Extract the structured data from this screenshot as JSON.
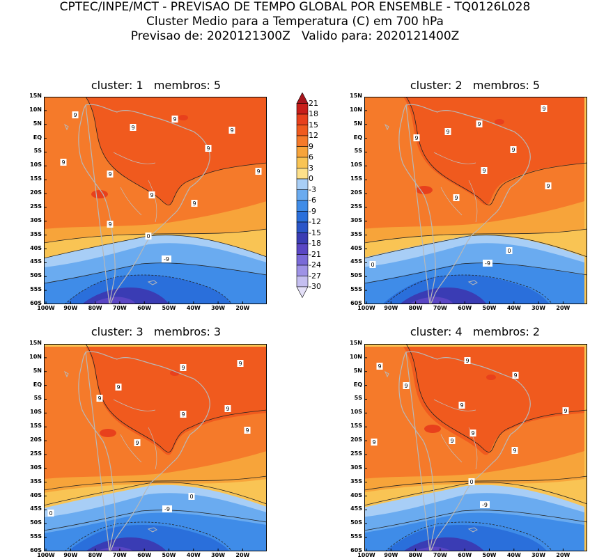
{
  "header": {
    "line1": "CPTEC/INPE/MCT - PREVISAO DE TEMPO GLOBAL POR ENSEMBLE - TQ0126L028",
    "line2": "Cluster Medio para a Temperatura (C) em 700 hPa",
    "line3": "Previsao de: 2020121300Z   Valido para: 2020121400Z"
  },
  "panels": [
    {
      "title": "cluster: 1   membros: 5"
    },
    {
      "title": "cluster: 2   membros: 5"
    },
    {
      "title": "cluster: 3   membros: 3"
    },
    {
      "title": "cluster: 4   membros: 2"
    }
  ],
  "lat_labels": [
    "15N",
    "10N",
    "5N",
    "EQ",
    "5S",
    "10S",
    "15S",
    "20S",
    "25S",
    "30S",
    "35S",
    "40S",
    "45S",
    "50S",
    "55S",
    "60S"
  ],
  "lon_labels": [
    "100W",
    "90W",
    "80W",
    "70W",
    "60W",
    "50W",
    "40W",
    "30W",
    "20W"
  ],
  "colorbar": {
    "labels": [
      "21",
      "18",
      "15",
      "12",
      "9",
      "6",
      "3",
      "0",
      "-3",
      "-6",
      "-9",
      "-12",
      "-15",
      "-18",
      "-21",
      "-24",
      "-27",
      "-30"
    ],
    "colors": [
      "#a8141c",
      "#c81e1a",
      "#e8401c",
      "#f05a1e",
      "#f57a2a",
      "#f7a43a",
      "#f9c454",
      "#fde08a",
      "#a8cef6",
      "#6aabf0",
      "#3f8ce8",
      "#2a6fdb",
      "#2a55c8",
      "#3a3cb4",
      "#5a46c4",
      "#7a6ad8",
      "#9e92e6",
      "#c4bef0",
      "#e4e0f8"
    ]
  },
  "contour_labels": {
    "warm": "9",
    "zero": "0",
    "cold": "-9"
  }
}
